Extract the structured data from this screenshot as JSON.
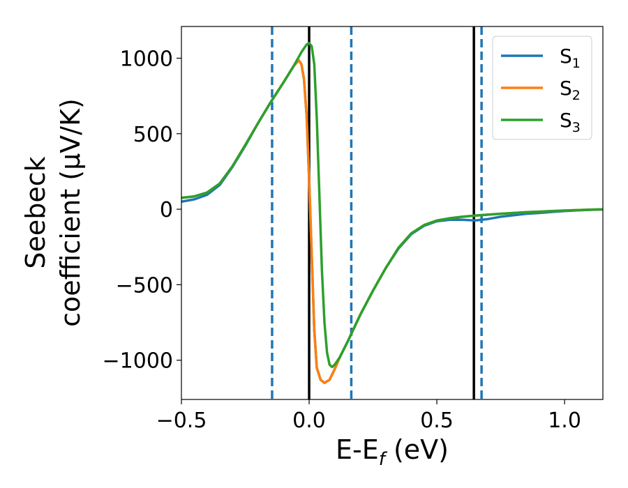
{
  "chart_data": {
    "type": "line",
    "title": "",
    "xlabel": {
      "main": "E-E",
      "sub": "f",
      "unit": " (eV)"
    },
    "ylabel": {
      "line1": "Seebeck",
      "line2": "coefficient  (μV/K)"
    },
    "xlim": [
      -0.5,
      1.15
    ],
    "ylim": [
      -1260,
      1210
    ],
    "xticks": [
      -0.5,
      0.0,
      0.5,
      1.0
    ],
    "xtick_labels": [
      "−0.5",
      "0.0",
      "0.5",
      "1.0"
    ],
    "yticks": [
      -1000,
      -500,
      0,
      500,
      1000
    ],
    "ytick_labels": [
      "−1000",
      "−500",
      "0",
      "500",
      "1000"
    ],
    "grid": false,
    "legend_position": "top-right",
    "vertical_lines": [
      {
        "x": -0.145,
        "style": "dashed",
        "color": "#1f77b4"
      },
      {
        "x": 0.0,
        "style": "solid",
        "color": "#000000"
      },
      {
        "x": 0.165,
        "style": "dashed",
        "color": "#1f77b4"
      },
      {
        "x": 0.645,
        "style": "solid",
        "color": "#000000"
      },
      {
        "x": 0.675,
        "style": "dashed",
        "color": "#1f77b4"
      }
    ],
    "series": [
      {
        "name": "S",
        "sub": "1",
        "color": "#1f77b4",
        "points": [
          [
            -0.5,
            50
          ],
          [
            -0.45,
            65
          ],
          [
            -0.4,
            95
          ],
          [
            -0.35,
            160
          ],
          [
            -0.3,
            280
          ],
          [
            -0.25,
            420
          ],
          [
            -0.2,
            570
          ],
          [
            -0.15,
            710
          ],
          [
            -0.1,
            840
          ],
          [
            -0.06,
            950
          ],
          [
            -0.04,
            985
          ],
          [
            -0.03,
            960
          ],
          [
            -0.02,
            860
          ],
          [
            -0.01,
            620
          ],
          [
            0.0,
            200
          ],
          [
            0.01,
            -300
          ],
          [
            0.02,
            -800
          ],
          [
            0.03,
            -1050
          ],
          [
            0.045,
            -1130
          ],
          [
            0.06,
            -1150
          ],
          [
            0.08,
            -1130
          ],
          [
            0.1,
            -1060
          ],
          [
            0.12,
            -980
          ],
          [
            0.15,
            -880
          ],
          [
            0.2,
            -700
          ],
          [
            0.25,
            -540
          ],
          [
            0.3,
            -390
          ],
          [
            0.35,
            -260
          ],
          [
            0.4,
            -165
          ],
          [
            0.45,
            -110
          ],
          [
            0.5,
            -80
          ],
          [
            0.55,
            -70
          ],
          [
            0.6,
            -70
          ],
          [
            0.65,
            -75
          ],
          [
            0.7,
            -65
          ],
          [
            0.75,
            -50
          ],
          [
            0.8,
            -40
          ],
          [
            0.85,
            -30
          ],
          [
            0.9,
            -25
          ],
          [
            0.95,
            -18
          ],
          [
            1.0,
            -12
          ],
          [
            1.05,
            -8
          ],
          [
            1.1,
            -4
          ],
          [
            1.15,
            -2
          ]
        ]
      },
      {
        "name": "S",
        "sub": "2",
        "color": "#ff7f0e",
        "points": [
          [
            -0.5,
            75
          ],
          [
            -0.45,
            85
          ],
          [
            -0.4,
            110
          ],
          [
            -0.35,
            170
          ],
          [
            -0.3,
            285
          ],
          [
            -0.25,
            425
          ],
          [
            -0.2,
            570
          ],
          [
            -0.15,
            710
          ],
          [
            -0.1,
            840
          ],
          [
            -0.06,
            950
          ],
          [
            -0.04,
            985
          ],
          [
            -0.03,
            960
          ],
          [
            -0.02,
            860
          ],
          [
            -0.01,
            620
          ],
          [
            0.0,
            200
          ],
          [
            0.01,
            -300
          ],
          [
            0.02,
            -800
          ],
          [
            0.03,
            -1050
          ],
          [
            0.045,
            -1130
          ],
          [
            0.06,
            -1150
          ],
          [
            0.08,
            -1130
          ],
          [
            0.1,
            -1060
          ],
          [
            0.12,
            -980
          ],
          [
            0.15,
            -880
          ],
          [
            0.2,
            -700
          ],
          [
            0.25,
            -540
          ],
          [
            0.3,
            -390
          ],
          [
            0.35,
            -255
          ],
          [
            0.4,
            -160
          ],
          [
            0.45,
            -105
          ],
          [
            0.5,
            -75
          ],
          [
            0.55,
            -60
          ],
          [
            0.6,
            -50
          ],
          [
            0.65,
            -42
          ],
          [
            0.7,
            -36
          ],
          [
            0.75,
            -30
          ],
          [
            0.8,
            -25
          ],
          [
            0.85,
            -20
          ],
          [
            0.9,
            -16
          ],
          [
            0.95,
            -12
          ],
          [
            1.0,
            -9
          ],
          [
            1.05,
            -6
          ],
          [
            1.1,
            -3
          ],
          [
            1.15,
            -1
          ]
        ]
      },
      {
        "name": "S",
        "sub": "3",
        "color": "#2ca02c",
        "points": [
          [
            -0.5,
            75
          ],
          [
            -0.45,
            85
          ],
          [
            -0.4,
            110
          ],
          [
            -0.35,
            170
          ],
          [
            -0.3,
            285
          ],
          [
            -0.25,
            425
          ],
          [
            -0.2,
            570
          ],
          [
            -0.15,
            710
          ],
          [
            -0.1,
            840
          ],
          [
            -0.06,
            950
          ],
          [
            -0.03,
            1040
          ],
          [
            -0.01,
            1090
          ],
          [
            0.0,
            1100
          ],
          [
            0.01,
            1080
          ],
          [
            0.02,
            960
          ],
          [
            0.03,
            600
          ],
          [
            0.04,
            100
          ],
          [
            0.05,
            -400
          ],
          [
            0.06,
            -750
          ],
          [
            0.07,
            -950
          ],
          [
            0.08,
            -1030
          ],
          [
            0.09,
            -1045
          ],
          [
            0.1,
            -1030
          ],
          [
            0.12,
            -980
          ],
          [
            0.15,
            -880
          ],
          [
            0.2,
            -700
          ],
          [
            0.25,
            -540
          ],
          [
            0.3,
            -390
          ],
          [
            0.35,
            -255
          ],
          [
            0.4,
            -160
          ],
          [
            0.45,
            -105
          ],
          [
            0.5,
            -75
          ],
          [
            0.55,
            -60
          ],
          [
            0.6,
            -50
          ],
          [
            0.65,
            -42
          ],
          [
            0.7,
            -36
          ],
          [
            0.75,
            -30
          ],
          [
            0.8,
            -25
          ],
          [
            0.85,
            -20
          ],
          [
            0.9,
            -16
          ],
          [
            0.95,
            -12
          ],
          [
            1.0,
            -9
          ],
          [
            1.05,
            -6
          ],
          [
            1.1,
            -3
          ],
          [
            1.15,
            -1
          ]
        ]
      }
    ]
  }
}
